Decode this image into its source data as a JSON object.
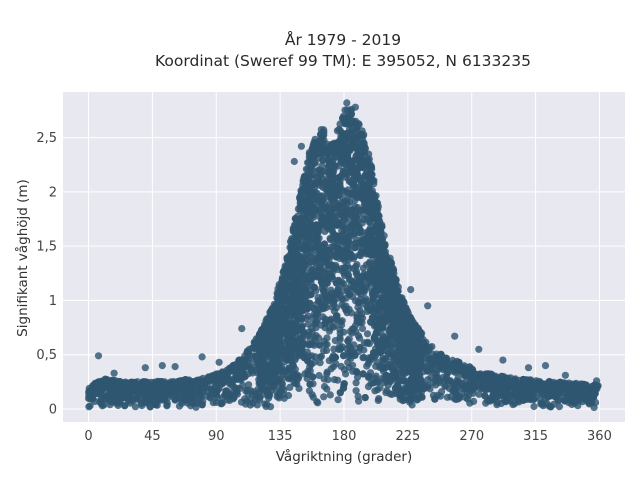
{
  "chart_data": {
    "type": "scatter",
    "title": "År 1979 - 2019",
    "subtitle": "Koordinat (Sweref 99 TM): E 395052, N 6133235",
    "xlabel": "Vågriktning (grader)",
    "ylabel": "Signifikant våghöjd (m)",
    "xlim": [
      -18,
      378
    ],
    "ylim": [
      -0.12,
      2.92
    ],
    "x_ticks": [
      0,
      45,
      90,
      135,
      180,
      225,
      270,
      315,
      360
    ],
    "x_tick_labels": [
      "0",
      "45",
      "90",
      "135",
      "180",
      "225",
      "270",
      "315",
      "360"
    ],
    "y_ticks": [
      0,
      0.5,
      1,
      1.5,
      2,
      2.5
    ],
    "y_tick_labels": [
      "0",
      "0,5",
      "1",
      "1,5",
      "2",
      "2,5"
    ],
    "grid": true,
    "marker_color": "#2f5770",
    "background_color": "#e8e8f0",
    "envelope": {
      "description_units": "upper bound of significant wave height (m) by wave direction (degrees)",
      "x": [
        0,
        10,
        30,
        60,
        85,
        100,
        110,
        120,
        130,
        140,
        148,
        155,
        160,
        165,
        170,
        175,
        180,
        185,
        190,
        195,
        200,
        205,
        210,
        215,
        220,
        225,
        230,
        240,
        250,
        260,
        270,
        280,
        300,
        330,
        360
      ],
      "y": [
        0.2,
        0.28,
        0.25,
        0.26,
        0.3,
        0.38,
        0.5,
        0.68,
        0.95,
        1.4,
        1.9,
        2.35,
        2.5,
        2.6,
        2.4,
        2.55,
        2.75,
        2.8,
        2.65,
        2.5,
        2.2,
        1.8,
        1.5,
        1.28,
        1.05,
        0.9,
        0.78,
        0.62,
        0.5,
        0.44,
        0.38,
        0.33,
        0.28,
        0.25,
        0.22
      ]
    },
    "outliers": [
      {
        "x": 7,
        "y": 0.49
      },
      {
        "x": 18,
        "y": 0.33
      },
      {
        "x": 40,
        "y": 0.38
      },
      {
        "x": 52,
        "y": 0.4
      },
      {
        "x": 61,
        "y": 0.39
      },
      {
        "x": 80,
        "y": 0.48
      },
      {
        "x": 92,
        "y": 0.43
      },
      {
        "x": 108,
        "y": 0.74
      },
      {
        "x": 150,
        "y": 2.42
      },
      {
        "x": 145,
        "y": 2.28
      },
      {
        "x": 182,
        "y": 2.82
      },
      {
        "x": 188,
        "y": 2.78
      },
      {
        "x": 227,
        "y": 1.1
      },
      {
        "x": 239,
        "y": 0.95
      },
      {
        "x": 258,
        "y": 0.67
      },
      {
        "x": 275,
        "y": 0.55
      },
      {
        "x": 292,
        "y": 0.45
      },
      {
        "x": 310,
        "y": 0.38
      },
      {
        "x": 322,
        "y": 0.4
      },
      {
        "x": 336,
        "y": 0.31
      },
      {
        "x": 358,
        "y": 0.26
      }
    ]
  }
}
